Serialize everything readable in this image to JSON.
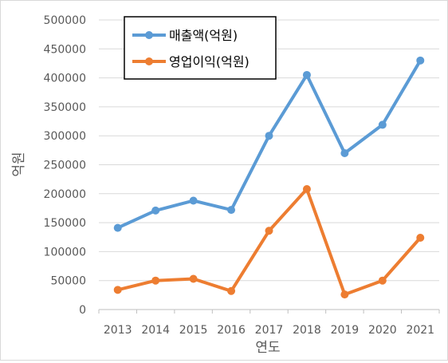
{
  "chart_data": {
    "type": "line",
    "title": "",
    "xlabel": "연도",
    "ylabel": "억원",
    "categories": [
      "2013",
      "2014",
      "2015",
      "2016",
      "2017",
      "2018",
      "2019",
      "2020",
      "2021"
    ],
    "ylim": [
      0,
      500000
    ],
    "yticks": [
      0,
      50000,
      100000,
      150000,
      200000,
      250000,
      300000,
      350000,
      400000,
      450000,
      500000
    ],
    "ytick_labels": [
      "0",
      "50000",
      "100000",
      "150000",
      "200000",
      "250000",
      "300000",
      "350000",
      "400000",
      "450000",
      "500000"
    ],
    "grid": true,
    "legend_position": "top-left",
    "series": [
      {
        "name": "매출액(억원)",
        "color": "#5b9bd5",
        "values": [
          141000,
          171000,
          188000,
          172000,
          300000,
          405000,
          270000,
          319000,
          430000
        ]
      },
      {
        "name": "영업이익(억원)",
        "color": "#ed7d31",
        "values": [
          34000,
          50000,
          53000,
          32000,
          136000,
          208000,
          26000,
          50000,
          124000
        ]
      }
    ]
  }
}
